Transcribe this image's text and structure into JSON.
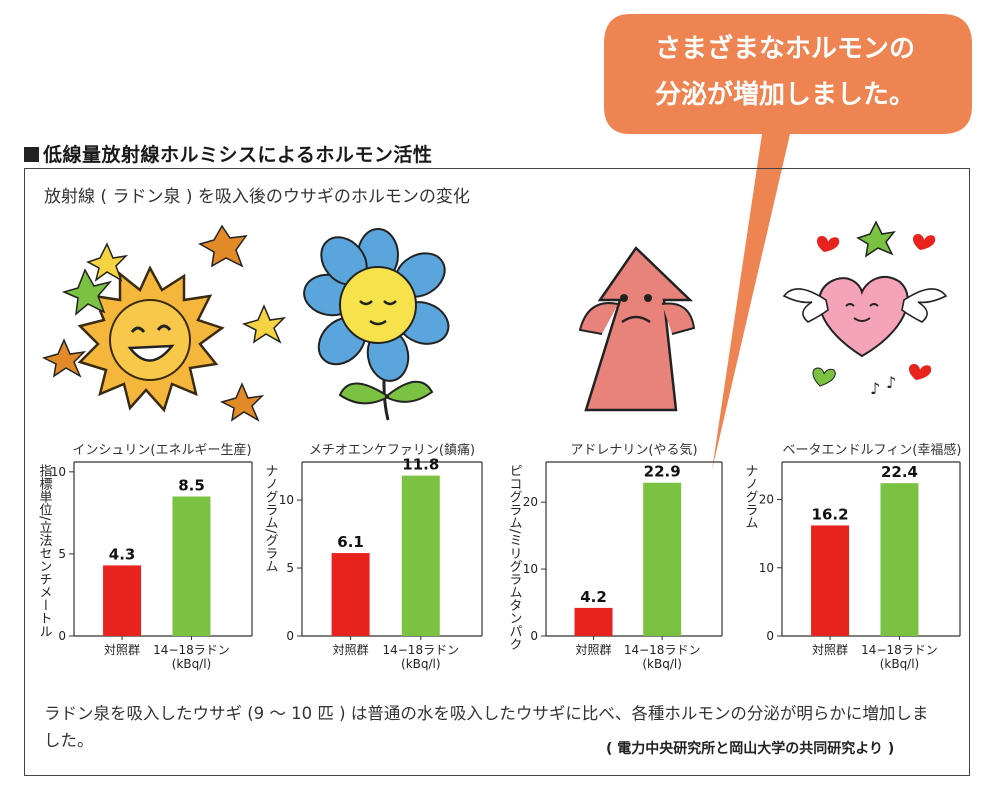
{
  "callout": {
    "line1": "さまざまなホルモンの",
    "line2": "分泌が増加しました。"
  },
  "section_title": "低線量放射線ホルミシスによるホルモン活性",
  "subtitle": "放射線 ( ラドン泉 ) を吸入後のウサギのホルモンの変化",
  "colors": {
    "control": "#e8231e",
    "radon": "#7cc242",
    "callout": "#ef8453",
    "frame": "#444444"
  },
  "illustrations": [
    "sun-icon",
    "flower-icon",
    "arrow-character-icon",
    "winged-heart-icon"
  ],
  "categories": [
    "対照群",
    "14−18ラドン"
  ],
  "category_unit": "(kBq/l)",
  "chart_data": [
    {
      "type": "bar",
      "title": "インシュリン(エネルギー生産)",
      "ylabel": "指標単位/立法センチメートル",
      "categories": [
        "対照群",
        "14−18ラドン"
      ],
      "values": [
        4.3,
        8.5
      ],
      "value_labels": [
        "4.3",
        "8.5"
      ],
      "ylim": [
        0,
        10.6
      ],
      "ticks": [
        0,
        5,
        10
      ]
    },
    {
      "type": "bar",
      "title": "メチオエンケファリン(鎮痛)",
      "ylabel": "ナノグラム/グラム",
      "categories": [
        "対照群",
        "14−18ラドン"
      ],
      "values": [
        6.1,
        11.8
      ],
      "value_labels": [
        "6.1",
        "11.8"
      ],
      "ylim": [
        0,
        12.8
      ],
      "ticks": [
        0,
        5,
        10
      ]
    },
    {
      "type": "bar",
      "title": "アドレナリン(やる気)",
      "ylabel": "ピコグラム/ミリグラムタンパク",
      "categories": [
        "対照群",
        "14−18ラドン"
      ],
      "values": [
        4.2,
        22.9
      ],
      "value_labels": [
        "4.2",
        "22.9"
      ],
      "ylim": [
        0,
        26
      ],
      "ticks": [
        0,
        10,
        20
      ]
    },
    {
      "type": "bar",
      "title": "ベータエンドルフィン(幸福感)",
      "ylabel": "ナノグラム",
      "categories": [
        "対照群",
        "14−18ラドン"
      ],
      "values": [
        16.2,
        22.4
      ],
      "value_labels": [
        "16.2",
        "22.4"
      ],
      "ylim": [
        0,
        25.5
      ],
      "ticks": [
        0,
        10,
        20
      ]
    }
  ],
  "body_text": "ラドン泉を吸入したウサギ (9 〜 10 匹 ) は普通の水を吸入したウサギに比べ、各種ホルモンの分泌が明らかに増加しました。",
  "credit": "( 電力中央研究所と岡山大学の共同研究より )"
}
